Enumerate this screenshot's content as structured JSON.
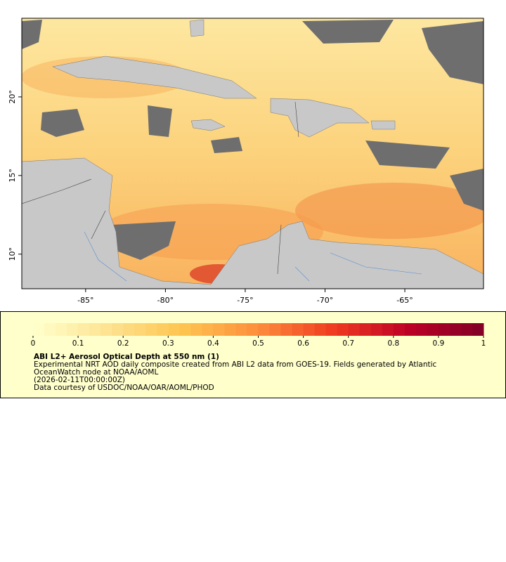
{
  "map": {
    "xlim": [
      -89.0,
      -60.07
    ],
    "ylim": [
      7.8,
      25.0
    ],
    "xticks": [
      {
        "value": -85,
        "label": "-85°"
      },
      {
        "value": -80,
        "label": "-80°"
      },
      {
        "value": -75,
        "label": "-75°"
      },
      {
        "value": -70,
        "label": "-70°"
      },
      {
        "value": -65,
        "label": "-65°"
      }
    ],
    "yticks": [
      {
        "value": 10,
        "label": "10°"
      },
      {
        "value": 15,
        "label": "15°"
      },
      {
        "value": 20,
        "label": "20°"
      }
    ]
  },
  "legend": {
    "colorbar": {
      "lim": [
        0,
        1
      ],
      "ticks": [
        0,
        0.1,
        0.2,
        0.3,
        0.4,
        0.5,
        0.6,
        0.7,
        0.8,
        0.9,
        1
      ],
      "colors": [
        "#ffffcc",
        "#fee391",
        "#fec44f",
        "#fd8d3c",
        "#f03b20",
        "#bd0026",
        "#800026"
      ]
    },
    "title": "ABI L2+ Aerosol Optical Depth at 550 nm (1)",
    "lines": [
      "Experimental NRT AOD daily composite created from ABI L2 data from GOES-19. Fields generated by Atlantic",
      "OceanWatch node at NOAA/AOML",
      "(2026-02-11T00:00:00Z)",
      "Data courtesy of USDOC/NOAA/OAR/AOML/PHOD"
    ]
  }
}
